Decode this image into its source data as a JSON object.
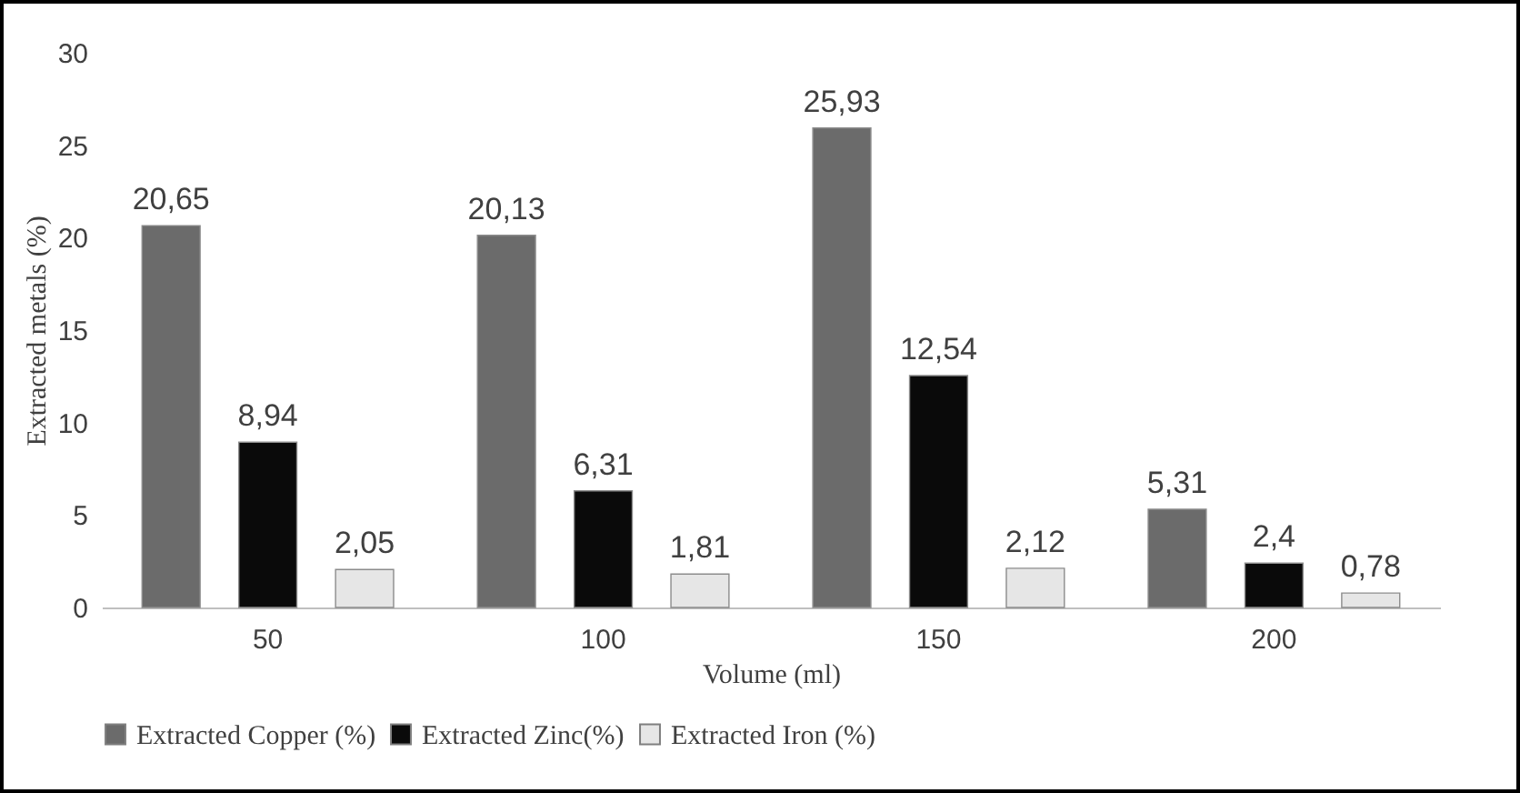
{
  "chart_data": {
    "type": "bar",
    "xlabel": "Volume (ml)",
    "ylabel": "Extracted metals (%)",
    "categories": [
      "50",
      "100",
      "150",
      "200"
    ],
    "series": [
      {
        "name": "Extracted Copper (%)",
        "color": "#6b6b6b",
        "values": [
          20.65,
          20.13,
          25.93,
          5.31
        ],
        "value_labels": [
          "20,65",
          "20,13",
          "25,93",
          "5,31"
        ]
      },
      {
        "name": "Extracted Zinc(%)",
        "color": "#0a0a0a",
        "values": [
          8.94,
          6.31,
          12.54,
          2.4
        ],
        "value_labels": [
          "8,94",
          "6,31",
          "12,54",
          "2,4"
        ]
      },
      {
        "name": "Extracted Iron (%)",
        "color": "#e6e6e6",
        "values": [
          2.05,
          1.81,
          2.12,
          0.78
        ],
        "value_labels": [
          "2,05",
          "1,81",
          "2,12",
          "0,78"
        ]
      }
    ],
    "ylim": [
      0,
      30
    ],
    "yticks": [
      0,
      5,
      10,
      15,
      20,
      25,
      30
    ],
    "legend": "bottom",
    "grid": false
  }
}
